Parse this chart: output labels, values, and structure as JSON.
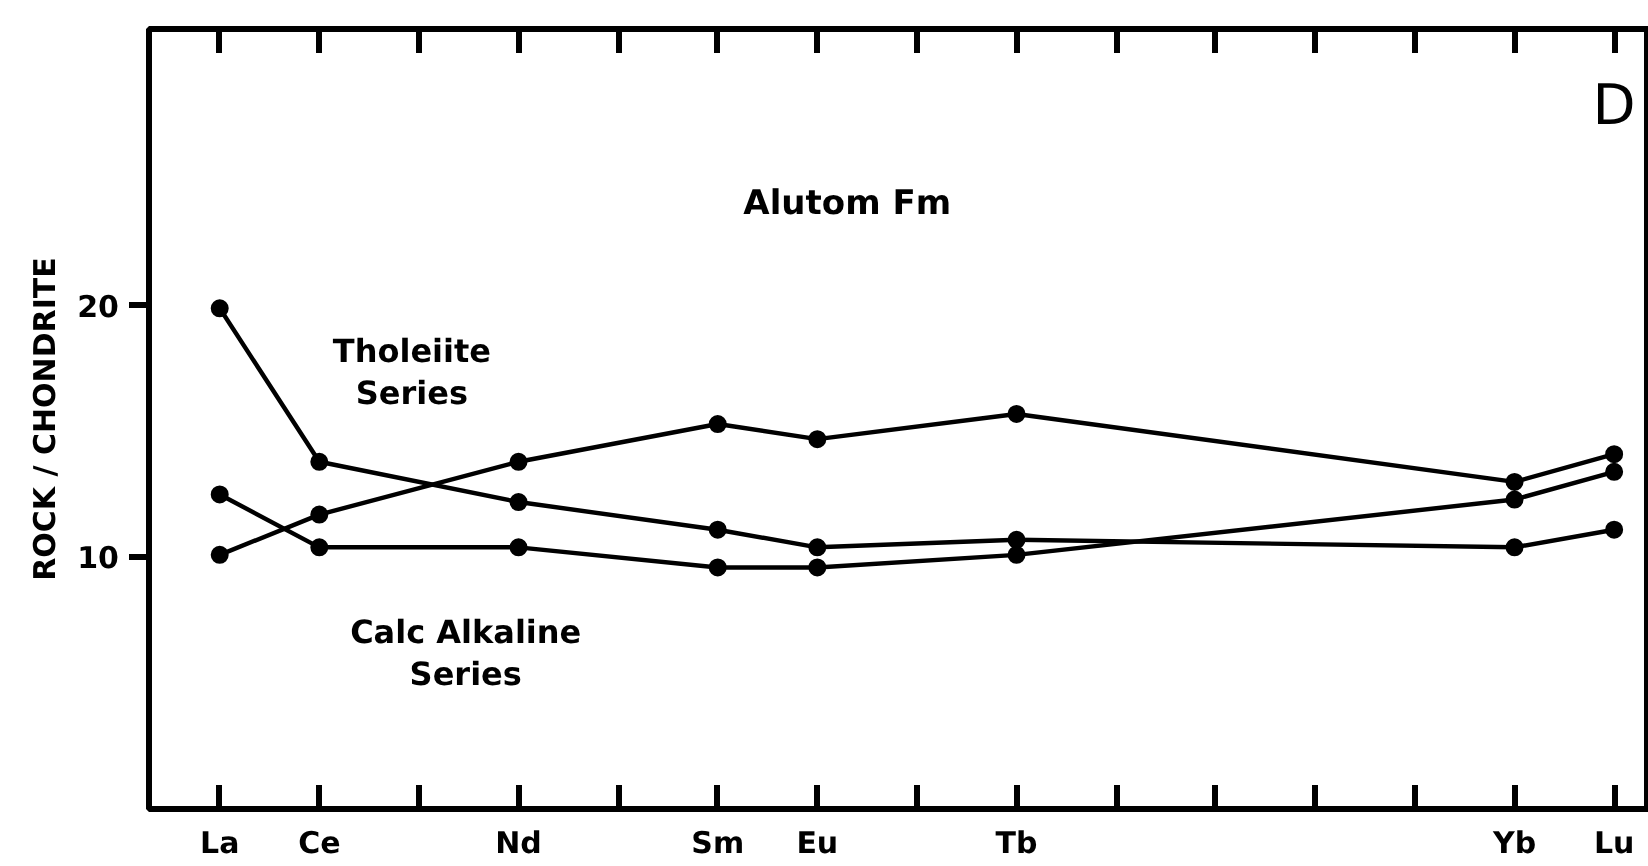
{
  "chart_data": {
    "type": "line",
    "title": "Alutom Fm",
    "subtitle": "D",
    "ylabel": "ROCK / CHONDRITE",
    "categories": [
      "La",
      "Ce",
      null,
      "Nd",
      null,
      "Sm",
      "Eu",
      null,
      "Tb",
      null,
      null,
      null,
      null,
      "Yb",
      "Lu"
    ],
    "ylim": [
      0,
      31
    ],
    "yticks": [
      10,
      20
    ],
    "grid": false,
    "marker": "circle",
    "line_style": "solid",
    "series": [
      {
        "color": "#000000",
        "values": [
          19.9,
          13.8,
          null,
          12.2,
          null,
          11.1,
          10.4,
          null,
          10.7,
          null,
          null,
          null,
          null,
          10.4,
          11.1
        ]
      },
      {
        "color": "#000000",
        "values": [
          10.1,
          11.7,
          null,
          13.8,
          null,
          15.3,
          14.7,
          null,
          15.7,
          null,
          null,
          null,
          null,
          13.0,
          14.1
        ]
      },
      {
        "color": "#000000",
        "values": [
          12.5,
          10.4,
          null,
          10.4,
          null,
          9.6,
          9.6,
          null,
          10.1,
          null,
          null,
          null,
          null,
          12.3,
          13.4
        ]
      }
    ],
    "annotations": [
      "Tholeiite\nSeries",
      "Calc Alkaline\nSeries"
    ]
  }
}
